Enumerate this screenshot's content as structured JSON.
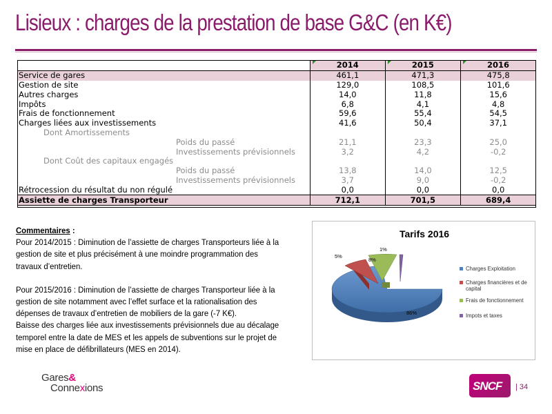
{
  "title": "Lisieux : charges de la prestation de base G&C (en K€)",
  "table": {
    "years": [
      "2014",
      "2015",
      "2016"
    ],
    "rows": [
      {
        "label": "Service de gares",
        "v": [
          "461,1",
          "471,3",
          "475,8"
        ]
      },
      {
        "label": "Gestion de site",
        "v": [
          "129,0",
          "108,5",
          "101,6"
        ]
      },
      {
        "label": "Autres charges",
        "v": [
          "14,0",
          "11,8",
          "15,6"
        ]
      },
      {
        "label": "Impôts",
        "v": [
          "6,8",
          "4,1",
          "4,8"
        ]
      },
      {
        "label": "Frais de fonctionnement",
        "v": [
          "59,6",
          "55,4",
          "54,5"
        ]
      },
      {
        "label": "Charges liées aux investissements",
        "v": [
          "41,6",
          "50,4",
          "37,1"
        ]
      },
      {
        "label": "Dont Amortissements",
        "v": [
          "",
          "",
          ""
        ]
      },
      {
        "label": "Poids du passé",
        "v": [
          "21,1",
          "23,3",
          "25,0"
        ]
      },
      {
        "label": "Investissements prévisionnels",
        "v": [
          "3,2",
          "4,2",
          "-0,2"
        ]
      },
      {
        "label": "Dont Coût des capitaux engagés",
        "v": [
          "",
          "",
          ""
        ]
      },
      {
        "label": "Poids du passé",
        "v": [
          "13,8",
          "14,0",
          "12,5"
        ]
      },
      {
        "label": "Investissements prévisionnels",
        "v": [
          "3,7",
          "9,0",
          "-0,2"
        ]
      },
      {
        "label": "Rétrocession du résultat du non régulé",
        "v": [
          "0,0",
          "0,0",
          "0,0"
        ]
      }
    ],
    "total": {
      "label": "Assiette de charges Transporteur",
      "v": [
        "712,1",
        "701,5",
        "689,4"
      ]
    }
  },
  "comments": {
    "heading": "Commentaires",
    "heading_suffix": " :",
    "p1": "Pour 2014/2015 : Diminution de l’assiette de charges Transporteurs liée à la gestion de site et plus précisément à une moindre programmation des travaux d’entretien.",
    "p2": "Pour 2015/2016 : Diminution de l’assiette de charges Transporteur liée à la gestion de site notamment avec l’effet surface et la rationalisation des dépenses de travaux d’entretien de mobiliers de la gare (-7 K€).",
    "p3": "Baisse des charges liée aux investissements prévisionnels due au décalage temporel entre la date de MES et les appels de subventions sur le projet de mise en place de défibrillateurs (MES  en 2014)."
  },
  "chart_data": {
    "type": "pie",
    "title": "Tarifs 2016",
    "categories": [
      "Charges Exploitation",
      "Charges financières et de capital",
      "Frais de fonctionnement",
      "Impots et taxes"
    ],
    "values": [
      86,
      5,
      8,
      1
    ],
    "data_labels": [
      "86%",
      "5%",
      "8%",
      "1%"
    ],
    "colors": [
      "#4f81bd",
      "#c0504d",
      "#9bbb59",
      "#8064a2"
    ],
    "legend": "right",
    "style": "3d-exploded"
  },
  "footer": {
    "logo_line1": "Gares",
    "logo_amp": "&",
    "logo_line2_a": "Conne",
    "logo_line2_x": "x",
    "logo_line2_b": "ions",
    "sncf": "SNCF",
    "page": "| 34"
  }
}
